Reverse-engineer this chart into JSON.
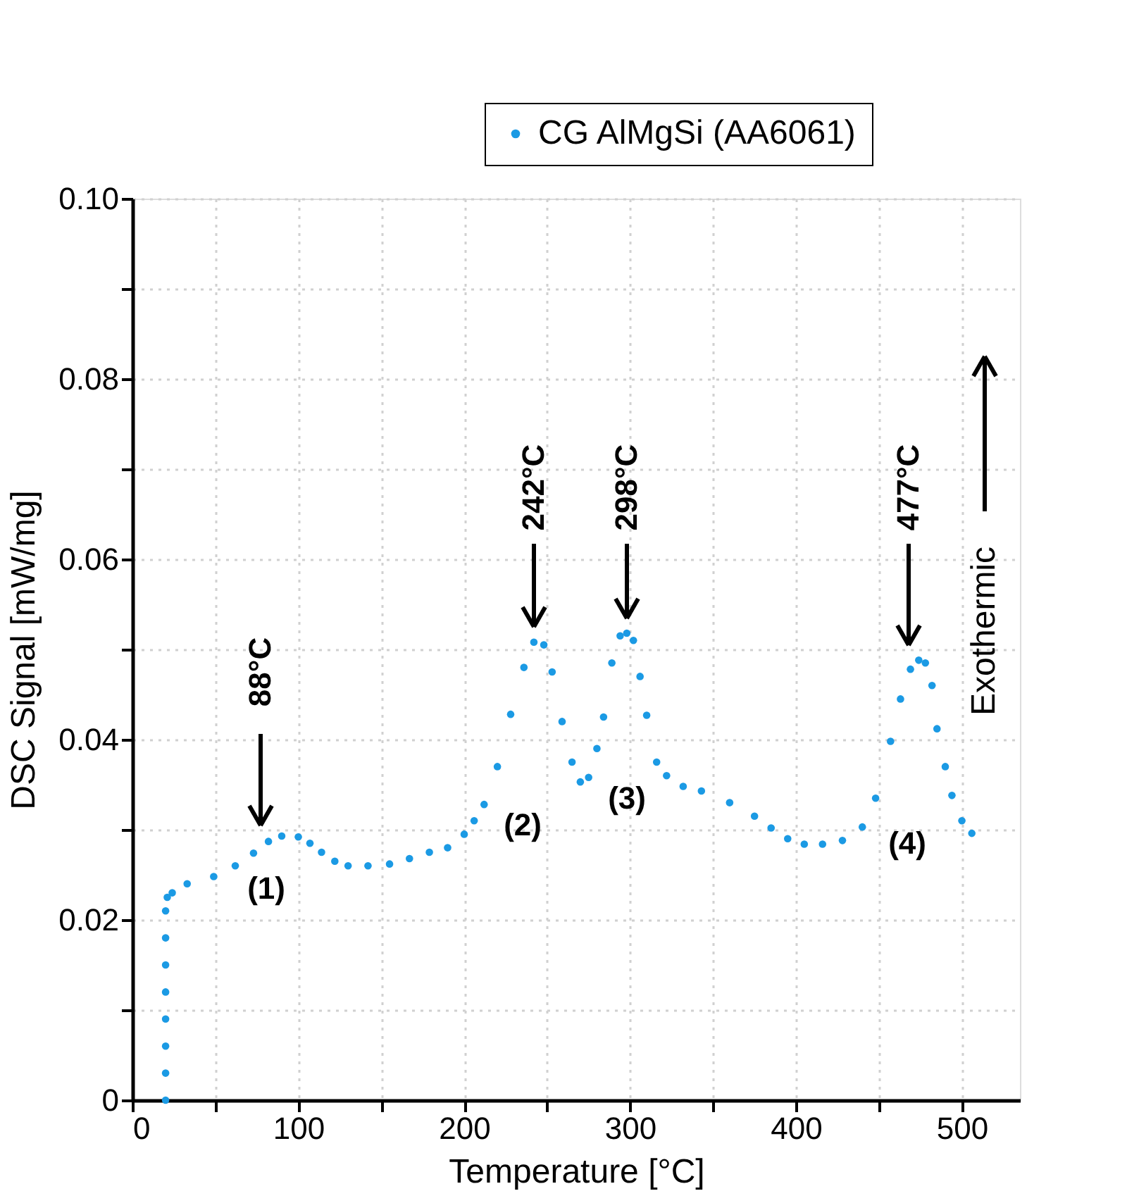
{
  "chart_data": {
    "type": "scatter",
    "xlabel": "Temperature [°C]",
    "ylabel": "DSC Signal [mW/mg]",
    "xlim": [
      0,
      535
    ],
    "ylim": [
      0,
      0.1
    ],
    "xticks": [
      0,
      {
        "value": 50,
        "label": null
      },
      100,
      {
        "value": 150,
        "label": null
      },
      200,
      {
        "value": 250,
        "label": null
      },
      300,
      {
        "value": 350,
        "label": null
      },
      400,
      {
        "value": 450,
        "label": null
      },
      500
    ],
    "yticks": [
      0,
      {
        "value": 0.01,
        "label": null
      },
      0.02,
      {
        "value": 0.03,
        "label": null
      },
      0.04,
      {
        "value": 0.05,
        "label": null
      },
      0.06,
      {
        "value": 0.07,
        "label": null
      },
      0.08,
      {
        "value": 0.09,
        "label": null
      },
      {
        "value": 0.1,
        "label": "0.10"
      }
    ],
    "grid": true,
    "legend": "top right",
    "marker": "circle",
    "series": [
      {
        "name": "CG AlMgSi (AA6061)",
        "color": "#1b9ae4",
        "x": [
          20,
          20,
          20,
          20,
          20,
          20,
          20,
          20,
          21,
          24,
          33,
          49,
          62,
          73,
          82,
          90,
          100,
          107,
          114,
          122,
          130,
          142,
          155,
          167,
          179,
          190,
          200,
          206,
          212,
          220,
          228,
          236,
          242,
          248,
          253,
          259,
          265,
          270,
          275,
          280,
          284,
          289,
          294,
          298,
          302,
          306,
          310,
          316,
          322,
          332,
          343,
          360,
          375,
          385,
          395,
          405,
          416,
          428,
          440,
          448,
          457,
          463,
          469,
          474,
          478,
          482,
          485,
          490,
          494,
          500,
          506
        ],
        "values": [
          0,
          0.003,
          0.006,
          0.009,
          0.012,
          0.015,
          0.018,
          0.021,
          0.0225,
          0.023,
          0.024,
          0.0248,
          0.026,
          0.0274,
          0.0287,
          0.0293,
          0.0292,
          0.0285,
          0.0275,
          0.0265,
          0.026,
          0.026,
          0.0262,
          0.0268,
          0.0275,
          0.028,
          0.0295,
          0.031,
          0.0328,
          0.037,
          0.0428,
          0.048,
          0.0508,
          0.0505,
          0.0475,
          0.042,
          0.0375,
          0.0353,
          0.0358,
          0.039,
          0.0425,
          0.0485,
          0.0515,
          0.0518,
          0.051,
          0.047,
          0.0427,
          0.0375,
          0.036,
          0.0348,
          0.0343,
          0.033,
          0.0315,
          0.0302,
          0.029,
          0.0284,
          0.0284,
          0.0288,
          0.0303,
          0.0335,
          0.0398,
          0.0445,
          0.0478,
          0.0488,
          0.0485,
          0.046,
          0.0412,
          0.037,
          0.0338,
          0.031,
          0.0296
        ]
      }
    ],
    "annotations": [
      "88°C",
      "242°C",
      "298°C",
      "477°C",
      "(1)",
      "(2)",
      "(3)",
      "(4)",
      "Exothermic"
    ]
  }
}
